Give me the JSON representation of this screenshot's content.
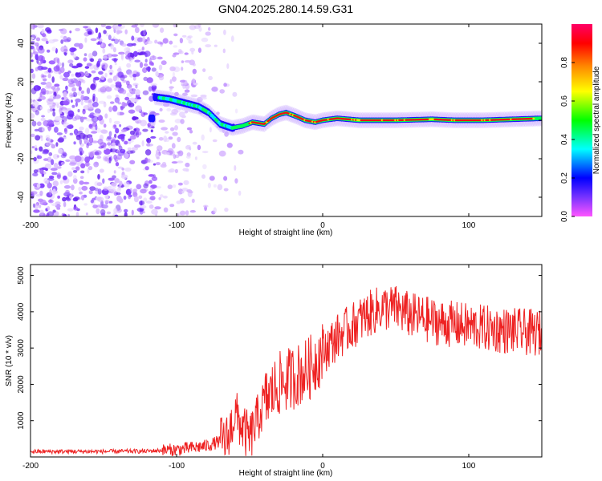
{
  "title": "GN04.2025.280.14.59.G31",
  "chart_data": [
    {
      "type": "heatmap",
      "xlabel": "Height of straight line (km)",
      "ylabel": "Frequency (Hz)",
      "xlim": [
        -200,
        150
      ],
      "ylim": [
        -50,
        50
      ],
      "xticks": [
        -200,
        -100,
        0,
        100
      ],
      "yticks": [
        -40,
        -20,
        0,
        20,
        40
      ],
      "colorbar": {
        "label": "Normalized spectral amplitude",
        "ticks": [
          "0.0",
          "0.2",
          "0.4",
          "0.6",
          "0.8"
        ],
        "colors": [
          "#ff55ff",
          "#7733ff",
          "#0000ff",
          "#00ffff",
          "#00ff00",
          "#ffff00",
          "#ff8800",
          "#ff0000",
          "#ff0066"
        ]
      },
      "ridge": {
        "x": [
          -115,
          -105,
          -95,
          -85,
          -78,
          -70,
          -62,
          -55,
          -48,
          -40,
          -35,
          -30,
          -25,
          -18,
          -12,
          -5,
          0,
          10,
          25,
          50,
          75,
          90,
          110,
          130,
          150
        ],
        "y": [
          12,
          11,
          9,
          7,
          4,
          -2,
          -4,
          -3,
          -1,
          -2,
          1,
          3,
          4,
          2,
          0,
          -1,
          0,
          1,
          0,
          0,
          0.5,
          0,
          0,
          0.5,
          1
        ]
      }
    },
    {
      "type": "line",
      "xlabel": "Height of straight line (km)",
      "ylabel": "SNR (10 * v/v)",
      "xlim": [
        -200,
        150
      ],
      "ylim": [
        0,
        5300
      ],
      "xticks": [
        -200,
        -100,
        0,
        100
      ],
      "yticks": [
        1000,
        2000,
        3000,
        4000,
        5000
      ],
      "color": "#ee2222",
      "trend": {
        "x": [
          -200,
          -150,
          -120,
          -100,
          -80,
          -65,
          -60,
          -55,
          -50,
          -40,
          -30,
          -20,
          -10,
          0,
          10,
          20,
          30,
          40,
          50,
          60,
          80,
          100,
          120,
          150
        ],
        "y": [
          150,
          150,
          160,
          200,
          300,
          500,
          1200,
          800,
          500,
          1500,
          2000,
          2200,
          2400,
          2900,
          3300,
          3600,
          3900,
          4100,
          4100,
          3900,
          3700,
          3600,
          3500,
          3400
        ]
      }
    }
  ]
}
